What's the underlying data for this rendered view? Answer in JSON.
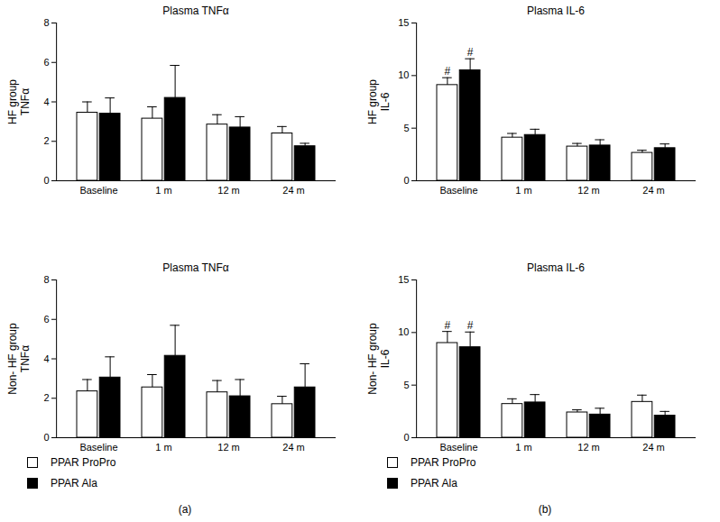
{
  "chart_data": [
    {
      "type": "bar",
      "title": "Plasma TNFα",
      "y_label": "HF group\nTNFα",
      "categories": [
        "Baseline",
        "1 m",
        "12 m",
        "24 m"
      ],
      "series": [
        {
          "name": "PPAR ProPro",
          "color": "#ffffff",
          "values": [
            3.45,
            3.15,
            2.85,
            2.4
          ],
          "errors": [
            0.55,
            0.6,
            0.5,
            0.35
          ]
        },
        {
          "name": "PPAR Ala",
          "color": "#000000",
          "values": [
            3.4,
            4.2,
            2.7,
            1.75
          ],
          "errors": [
            0.8,
            1.65,
            0.55,
            0.15
          ]
        }
      ],
      "ylim": [
        0,
        8
      ],
      "yticks": [
        0,
        2,
        4,
        6,
        8
      ],
      "annotations": []
    },
    {
      "type": "bar",
      "title": "Plasma IL-6",
      "y_label": "HF group\nIL-6",
      "categories": [
        "Baseline",
        "1 m",
        "12 m",
        "24 m"
      ],
      "series": [
        {
          "name": "PPAR ProPro",
          "color": "#ffffff",
          "values": [
            9.1,
            4.1,
            3.25,
            2.65
          ],
          "errors": [
            0.7,
            0.4,
            0.3,
            0.25
          ]
        },
        {
          "name": "PPAR Ala",
          "color": "#000000",
          "values": [
            10.5,
            4.35,
            3.35,
            3.1
          ],
          "errors": [
            1.1,
            0.55,
            0.55,
            0.4
          ]
        }
      ],
      "ylim": [
        0,
        15
      ],
      "yticks": [
        0,
        5,
        10,
        15
      ],
      "annotations": [
        {
          "series": "PPAR ProPro",
          "category": "Baseline",
          "text": "#"
        },
        {
          "series": "PPAR Ala",
          "category": "Baseline",
          "text": "#"
        }
      ]
    },
    {
      "type": "bar",
      "title": "Plasma TNFα",
      "y_label": "Non- HF group\nTNFα",
      "categories": [
        "Baseline",
        "1 m",
        "12 m",
        "24 m"
      ],
      "series": [
        {
          "name": "PPAR ProPro",
          "color": "#ffffff",
          "values": [
            2.35,
            2.55,
            2.3,
            1.7
          ],
          "errors": [
            0.6,
            0.65,
            0.6,
            0.4
          ]
        },
        {
          "name": "PPAR Ala",
          "color": "#000000",
          "values": [
            3.05,
            4.15,
            2.1,
            2.55
          ],
          "errors": [
            1.05,
            1.55,
            0.85,
            1.2
          ]
        }
      ],
      "ylim": [
        0,
        8
      ],
      "yticks": [
        0,
        2,
        4,
        6,
        8
      ],
      "annotations": []
    },
    {
      "type": "bar",
      "title": "Plasma IL-6",
      "y_label": "Non- HF group\nIL-6",
      "categories": [
        "Baseline",
        "1 m",
        "12 m",
        "24 m"
      ],
      "series": [
        {
          "name": "PPAR ProPro",
          "color": "#ffffff",
          "values": [
            9.0,
            3.2,
            2.4,
            3.4
          ],
          "errors": [
            1.1,
            0.5,
            0.25,
            0.65
          ]
        },
        {
          "name": "PPAR Ala",
          "color": "#000000",
          "values": [
            8.6,
            3.35,
            2.2,
            2.1
          ],
          "errors": [
            1.45,
            0.75,
            0.6,
            0.4
          ]
        }
      ],
      "ylim": [
        0,
        15
      ],
      "yticks": [
        0,
        5,
        10,
        15
      ],
      "annotations": [
        {
          "series": "PPAR ProPro",
          "category": "Baseline",
          "text": "#"
        },
        {
          "series": "PPAR Ala",
          "category": "Baseline",
          "text": "#"
        }
      ]
    }
  ],
  "panel_labels": [
    "(a)",
    "(b)"
  ]
}
